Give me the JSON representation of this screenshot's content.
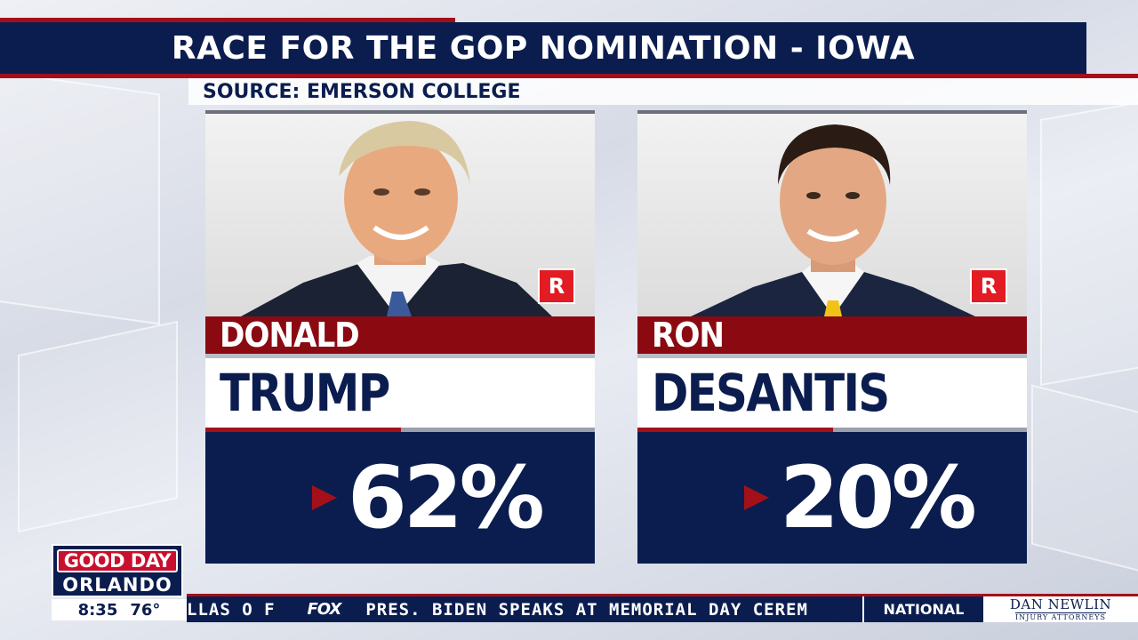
{
  "header": {
    "title": "RACE FOR THE GOP NOMINATION - IOWA",
    "source": "SOURCE: EMERSON COLLEGE"
  },
  "candidates": [
    {
      "first_name": "DONALD",
      "last_name": "TRUMP",
      "party": "R",
      "percent": "62%"
    },
    {
      "first_name": "RON",
      "last_name": "DESANTIS",
      "party": "R",
      "percent": "20%"
    }
  ],
  "branding": {
    "logo_line1": "GOOD DAY",
    "logo_line2": "ORLANDO",
    "time": "8:35",
    "temperature": "76°"
  },
  "ticker": {
    "previous_fragment": "LLAS O F",
    "network": "FOX",
    "headline": "PRES. BIDEN SPEAKS AT MEMORIAL DAY CEREM",
    "category": "NATIONAL",
    "sponsor_name": "DAN NEWLIN",
    "sponsor_sub": "INJURY ATTORNEYS"
  },
  "colors": {
    "navy": "#0b1d4f",
    "red": "#a3101a",
    "badge_red": "#e31b23"
  }
}
